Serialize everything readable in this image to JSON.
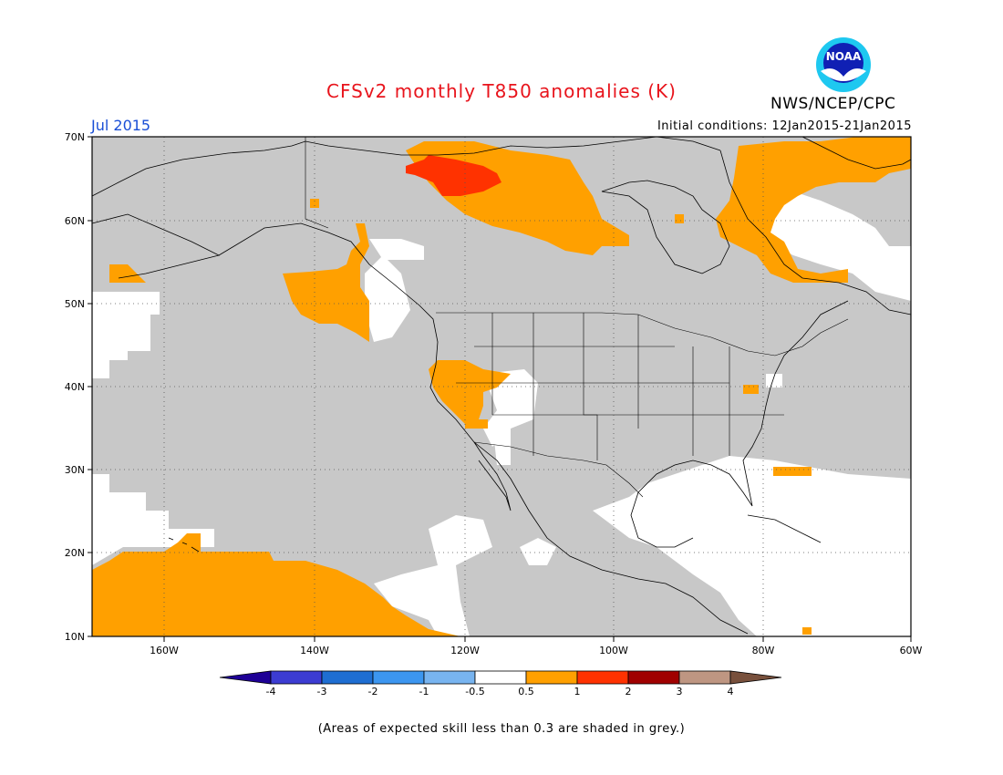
{
  "header": {
    "title": "CFSv2 monthly T850 anomalies (K)",
    "month": "Jul 2015",
    "initial_conditions": "Initial conditions: 12Jan2015-21Jan2015",
    "org": "NWS/NCEP/CPC",
    "logo_text": "NOAA"
  },
  "map": {
    "lat_labels": [
      "70N",
      "60N",
      "50N",
      "40N",
      "30N",
      "20N",
      "10N"
    ],
    "lon_labels": [
      "160W",
      "140W",
      "120W",
      "100W",
      "80W",
      "60W"
    ],
    "legend_values": [
      "-4",
      "-3",
      "-2",
      "-1",
      "-0.5",
      "0.5",
      "1",
      "2",
      "3",
      "4"
    ],
    "colors": {
      "grey_skill": "#c8c8c8",
      "anom_0_5_to_1": "#ffa000",
      "anom_1_to_2": "#ff3200",
      "anom_2_to_3": "#a00000",
      "title": "#e8141c",
      "month": "#1a4fd6"
    },
    "legend_colors": [
      "#1e0096",
      "#3c3cd2",
      "#1e6ed2",
      "#3c96f0",
      "#78b4f0",
      "#ffffff",
      "#ffa000",
      "#ff3200",
      "#a00000",
      "#be9682",
      "#78503c"
    ]
  },
  "footnote": "(Areas of expected skill less than 0.3 are shaded in grey.)"
}
